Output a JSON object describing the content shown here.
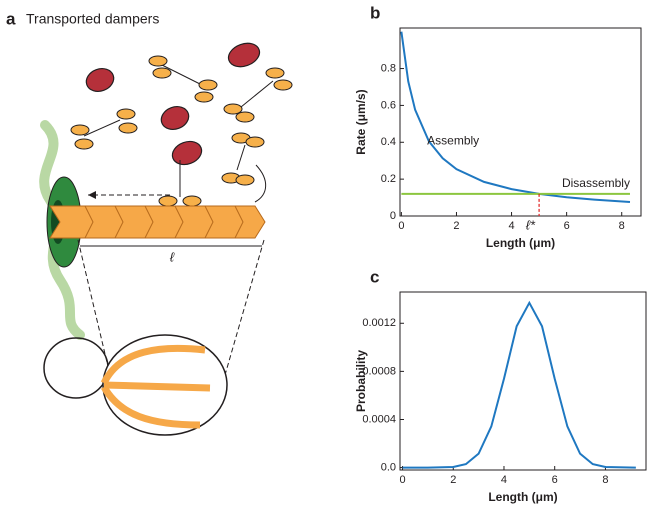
{
  "diagram": {
    "label": "a",
    "title": "Transported dampers",
    "length_label": "ℓ"
  },
  "chart_data": [
    {
      "type": "line",
      "label": "b",
      "ylabel": "Rate (μm/s)",
      "xlabel": "Length (μm)",
      "xlim": [
        -0.05,
        8.7
      ],
      "ylim": [
        0,
        1.02
      ],
      "xticks": [
        0,
        2,
        4,
        6,
        8
      ],
      "yticks": [
        0,
        0.2,
        0.4,
        0.6,
        0.8
      ],
      "series": [
        {
          "name": "Assembly",
          "color": "#1f78c1",
          "x": [
            0,
            0.25,
            0.5,
            1,
            1.5,
            2,
            3,
            4,
            5,
            6,
            7,
            8.3
          ],
          "values": [
            1.0,
            0.73,
            0.576,
            0.405,
            0.313,
            0.254,
            0.185,
            0.146,
            0.12,
            0.102,
            0.089,
            0.076
          ]
        },
        {
          "name": "Disassembly",
          "color": "#8cc63f",
          "x": [
            0,
            8.3
          ],
          "values": [
            0.12,
            0.12
          ]
        }
      ],
      "annotation": {
        "text": "ℓ*",
        "x": 5,
        "y": 0.12,
        "color": "#e02020"
      }
    },
    {
      "type": "line",
      "label": "c",
      "ylabel": "Probability",
      "xlabel": "Length (μm)",
      "xlim": [
        -0.1,
        9.6
      ],
      "ylim": [
        -2e-05,
        0.00146
      ],
      "xticks": [
        0,
        2,
        4,
        6,
        8
      ],
      "yticks": [
        {
          "value": 0,
          "label": "0.0"
        },
        0.0004,
        0.0008,
        0.0012
      ],
      "series": [
        {
          "color": "#1f78c1",
          "x": [
            0,
            1,
            2,
            2.5,
            3,
            3.5,
            4,
            4.5,
            5,
            5.5,
            6,
            6.5,
            7,
            7.5,
            8,
            9.2
          ],
          "values": [
            0,
            0,
            5e-06,
            2.9e-05,
            0.000116,
            0.000342,
            0.000739,
            0.001175,
            0.00137,
            0.001175,
            0.000739,
            0.000342,
            0.000116,
            2.9e-05,
            5e-06,
            0
          ]
        }
      ]
    }
  ]
}
